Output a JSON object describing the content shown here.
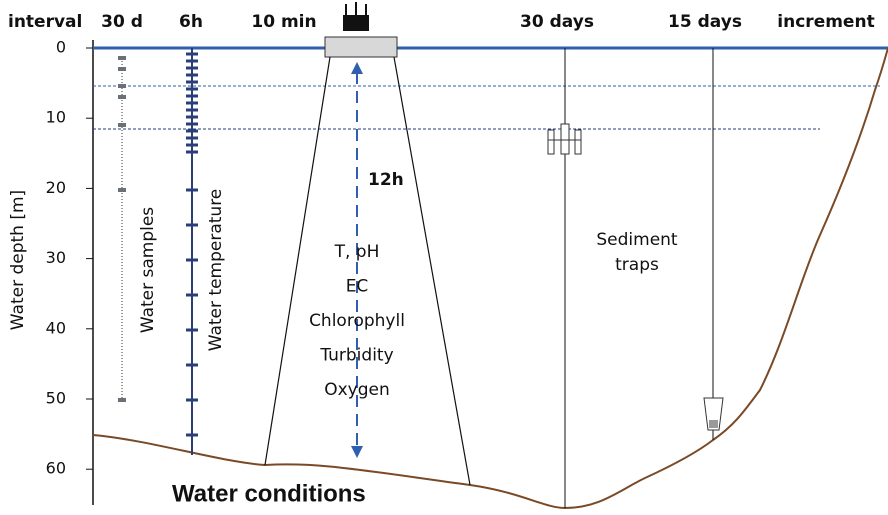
{
  "header": {
    "interval": "interval",
    "water_samples_interval": "30 d",
    "temperature_interval": "6h",
    "sonde_interval": "10 min",
    "trap_shallow_interval": "30 days",
    "trap_deep_interval": "15 days",
    "increment": "increment"
  },
  "depth_axis": {
    "label": "Water depth [m]",
    "ticks": [
      0,
      10,
      20,
      30,
      40,
      50,
      60
    ]
  },
  "labels": {
    "water_samples": "Water samples",
    "water_temperature": "Water temperature",
    "profile_interval": "12h",
    "parameters": [
      "T, pH",
      "EC",
      "Chlorophyll",
      "Turbidity",
      "Oxygen"
    ],
    "sediment_traps": [
      "Sediment",
      "traps"
    ]
  },
  "footer": {
    "title": "Water conditions"
  }
}
